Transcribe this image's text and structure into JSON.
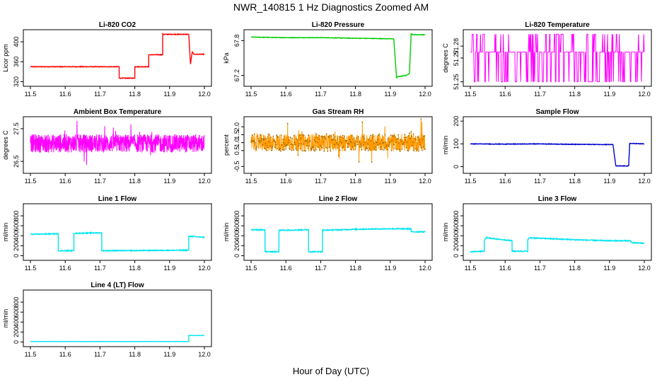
{
  "figure_title": "NWR_140815  1 Hz Diagnostics Zoomed AM",
  "x_label": "Hour of Day (UTC)",
  "chart_data": [
    {
      "type": "line",
      "title": "Li-820 CO2",
      "ylabel": "Licor ppm",
      "color": "#ff0000",
      "xlim": [
        11.5,
        12.0
      ],
      "ylim": [
        315,
        420
      ],
      "yticks": [
        320,
        360,
        400
      ],
      "yticklabels": [
        "320",
        "360",
        "400"
      ],
      "noise": 0.6,
      "x": [
        11.5,
        11.54,
        11.58,
        11.62,
        11.66,
        11.7,
        11.74,
        11.755,
        11.755,
        11.8,
        11.8,
        11.81,
        11.81,
        11.84,
        11.84,
        11.88,
        11.88,
        11.955,
        11.96,
        11.965,
        11.97,
        12.0
      ],
      "y": [
        350,
        350,
        350,
        350,
        350,
        350,
        350,
        350,
        327,
        327,
        350,
        350,
        350,
        350,
        374,
        374,
        415,
        415,
        355,
        380,
        375,
        375
      ]
    },
    {
      "type": "line",
      "title": "Li-820 Pressure",
      "ylabel": "kPa",
      "color": "#00cc00",
      "xlim": [
        11.5,
        12.0
      ],
      "ylim": [
        67.05,
        67.95
      ],
      "yticks": [
        67.2,
        67.8
      ],
      "yticklabels": [
        "67.2",
        "67.8"
      ],
      "noise": 0.004,
      "x": [
        11.5,
        11.6,
        11.7,
        11.8,
        11.91,
        11.918,
        11.922,
        11.945,
        11.955,
        11.96,
        11.965,
        12.0
      ],
      "y": [
        67.86,
        67.85,
        67.85,
        67.84,
        67.83,
        67.16,
        67.18,
        67.2,
        67.23,
        67.92,
        67.9,
        67.9
      ]
    },
    {
      "type": "binary",
      "title": "Li-820 Temperature",
      "ylabel": "degrees C",
      "color": "#ff00ff",
      "xlim": [
        11.5,
        12.0
      ],
      "ylim": [
        51.248,
        51.292
      ],
      "yticks": [
        51.25,
        51.27,
        51.28
      ],
      "yticklabels": [
        "51.25",
        "51.27",
        "51.28"
      ],
      "levels": [
        51.25,
        51.275,
        51.29
      ]
    },
    {
      "type": "noise",
      "title": "Ambient Box Temperature",
      "ylabel": "degrees C",
      "color": "#ff00ff",
      "xlim": [
        11.5,
        12.0
      ],
      "ylim": [
        26.2,
        27.8
      ],
      "yticks": [
        26.5,
        27.5
      ],
      "yticklabels": [
        "26.5",
        "27.5"
      ],
      "center": 27.05,
      "amp": 0.28,
      "spike": 0.55
    },
    {
      "type": "noise",
      "title": "Gas Stream RH",
      "ylabel": "percent",
      "color": "#ff9900",
      "points": true,
      "xlim": [
        11.5,
        12.0
      ],
      "ylim": [
        -0.8,
        2.5
      ],
      "yticks": [
        -0.5,
        0.5,
        1,
        1.5,
        2
      ],
      "yticklabels": [
        "-0.5",
        "0.5",
        "1.0",
        "1.5",
        "2.0"
      ],
      "center": 1.0,
      "amp": 0.55,
      "spike": 1.2
    },
    {
      "type": "line",
      "title": "Sample Flow",
      "ylabel": "ml/min",
      "color": "#0000cc",
      "xlim": [
        11.5,
        12.0
      ],
      "ylim": [
        -20,
        210
      ],
      "yticks": [
        0,
        100,
        200
      ],
      "yticklabels": [
        "0",
        "100",
        "200"
      ],
      "noise": 1.2,
      "x": [
        11.5,
        11.6,
        11.7,
        11.8,
        11.91,
        11.918,
        11.955,
        11.958,
        12.0
      ],
      "y": [
        100,
        99,
        100,
        98,
        97,
        3,
        3,
        102,
        100
      ]
    },
    {
      "type": "line",
      "title": "Line 1 Flow",
      "ylabel": "ml/min",
      "color": "#00e5ee",
      "xlim": [
        11.5,
        12.0
      ],
      "ylim": [
        -50,
        1000
      ],
      "yticks": [
        0,
        200,
        400,
        600,
        800
      ],
      "yticklabels": [
        "0",
        "200",
        "400",
        "600",
        "800"
      ],
      "noise": 8,
      "x": [
        11.5,
        11.58,
        11.58,
        11.625,
        11.625,
        11.705,
        11.705,
        11.955,
        11.955,
        12.0
      ],
      "y": [
        430,
        440,
        100,
        100,
        450,
        460,
        100,
        110,
        390,
        370
      ]
    },
    {
      "type": "line",
      "title": "Line 2 Flow",
      "ylabel": "ml/min",
      "color": "#00e5ee",
      "xlim": [
        11.5,
        12.0
      ],
      "ylim": [
        -50,
        1000
      ],
      "yticks": [
        0,
        200,
        400,
        600,
        800
      ],
      "yticklabels": [
        "0",
        "200",
        "400",
        "600",
        "800"
      ],
      "noise": 9,
      "x": [
        11.5,
        11.54,
        11.54,
        11.58,
        11.58,
        11.665,
        11.665,
        11.705,
        11.705,
        11.8,
        11.9,
        11.96,
        11.96,
        12.0
      ],
      "y": [
        520,
        520,
        80,
        80,
        510,
        520,
        80,
        80,
        510,
        530,
        540,
        540,
        480,
        480
      ]
    },
    {
      "type": "line",
      "title": "Line 3 Flow",
      "ylabel": "ml/min",
      "color": "#00e5ee",
      "xlim": [
        11.5,
        12.0
      ],
      "ylim": [
        -50,
        1000
      ],
      "yticks": [
        0,
        200,
        400,
        600,
        800
      ],
      "yticklabels": [
        "0",
        "200",
        "400",
        "600",
        "800"
      ],
      "noise": 9,
      "x": [
        11.5,
        11.54,
        11.54,
        11.545,
        11.62,
        11.62,
        11.665,
        11.665,
        11.67,
        11.8,
        11.9,
        11.96,
        11.965,
        12.0
      ],
      "y": [
        80,
        90,
        300,
        360,
        300,
        90,
        90,
        320,
        360,
        320,
        300,
        300,
        260,
        250
      ]
    },
    {
      "type": "line",
      "title": "Line 4 (LT) Flow",
      "ylabel": "ml/min",
      "color": "#00e5ee",
      "xlim": [
        11.5,
        12.0
      ],
      "ylim": [
        -50,
        1000
      ],
      "yticks": [
        0,
        200,
        400,
        600,
        800
      ],
      "yticklabels": [
        "0",
        "200",
        "400",
        "600",
        "800"
      ],
      "noise": 2,
      "x": [
        11.5,
        11.7,
        11.955,
        11.955,
        12.0
      ],
      "y": [
        10,
        10,
        10,
        130,
        130
      ]
    }
  ],
  "x_ticks": [
    11.5,
    11.6,
    11.7,
    11.8,
    11.9,
    12.0
  ],
  "x_ticklabels": [
    "11.5",
    "11.6",
    "11.7",
    "11.8",
    "11.9",
    "12.0"
  ]
}
